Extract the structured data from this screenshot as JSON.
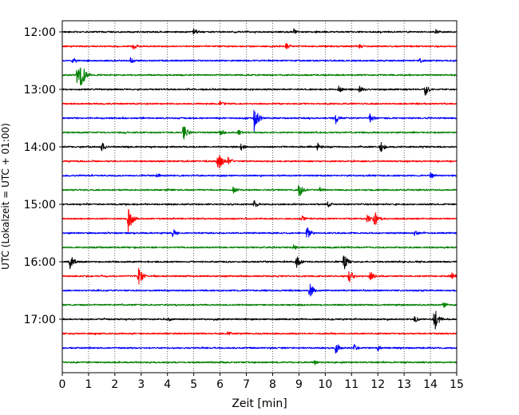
{
  "chart_data": {
    "type": "line",
    "xlabel": "Zeit  [min]",
    "ylabel": "UTC (Lokalzeit = UTC + 01:00)",
    "xlim": [
      0,
      15
    ],
    "x_ticks": [
      0,
      1,
      2,
      3,
      4,
      5,
      6,
      7,
      8,
      9,
      10,
      11,
      12,
      13,
      14,
      15
    ],
    "y_ticks": [
      {
        "label": "12:00",
        "trace": 0
      },
      {
        "label": "13:00",
        "trace": 4
      },
      {
        "label": "14:00",
        "trace": 8
      },
      {
        "label": "15:00",
        "trace": 12
      },
      {
        "label": "16:00",
        "trace": 16
      },
      {
        "label": "17:00",
        "trace": 20
      }
    ],
    "grid": "vertical-dotted",
    "trace_interval_minutes": 15,
    "color_cycle": [
      "#000000",
      "#ff0000",
      "#0000ff",
      "#008000"
    ],
    "series": [
      {
        "start": "12:00",
        "events": [
          {
            "x": 5.0,
            "amp": 1.2
          },
          {
            "x": 8.8,
            "amp": 1.1
          },
          {
            "x": 14.2,
            "amp": 1.0
          }
        ]
      },
      {
        "start": "12:15",
        "events": [
          {
            "x": 2.7,
            "amp": 1.3
          },
          {
            "x": 8.5,
            "amp": 1.2
          },
          {
            "x": 11.3,
            "amp": 0.9
          }
        ]
      },
      {
        "start": "12:30",
        "events": [
          {
            "x": 0.4,
            "amp": 1.4
          },
          {
            "x": 2.6,
            "amp": 1.2
          },
          {
            "x": 13.6,
            "amp": 1.0
          }
        ]
      },
      {
        "start": "12:45",
        "events": [
          {
            "x": 0.7,
            "amp": 5.2
          },
          {
            "x": 0.55,
            "amp": 2.6
          }
        ]
      },
      {
        "start": "13:00",
        "events": [
          {
            "x": 10.5,
            "amp": 1.4
          },
          {
            "x": 11.3,
            "amp": 1.2
          },
          {
            "x": 13.8,
            "amp": 2.2
          }
        ]
      },
      {
        "start": "13:15",
        "events": [
          {
            "x": 6.0,
            "amp": 0.9
          }
        ]
      },
      {
        "start": "13:30",
        "events": [
          {
            "x": 7.3,
            "amp": 4.6
          },
          {
            "x": 10.4,
            "amp": 1.9
          },
          {
            "x": 11.7,
            "amp": 1.5
          }
        ]
      },
      {
        "start": "13:45",
        "events": [
          {
            "x": 4.6,
            "amp": 3.0
          },
          {
            "x": 6.0,
            "amp": 1.3
          },
          {
            "x": 6.7,
            "amp": 1.0
          }
        ]
      },
      {
        "start": "14:00",
        "events": [
          {
            "x": 1.5,
            "amp": 1.6
          },
          {
            "x": 6.8,
            "amp": 1.4
          },
          {
            "x": 9.7,
            "amp": 1.5
          },
          {
            "x": 12.1,
            "amp": 2.0
          }
        ]
      },
      {
        "start": "14:15",
        "events": [
          {
            "x": 5.9,
            "amp": 4.2
          },
          {
            "x": 6.3,
            "amp": 1.6
          }
        ]
      },
      {
        "start": "14:30",
        "events": [
          {
            "x": 3.6,
            "amp": 0.9
          },
          {
            "x": 14.0,
            "amp": 1.1
          }
        ]
      },
      {
        "start": "14:45",
        "events": [
          {
            "x": 6.5,
            "amp": 1.3
          },
          {
            "x": 9.0,
            "amp": 2.6
          },
          {
            "x": 9.8,
            "amp": 1.0
          }
        ]
      },
      {
        "start": "15:00",
        "events": [
          {
            "x": 7.3,
            "amp": 1.4
          },
          {
            "x": 10.1,
            "amp": 1.1
          }
        ]
      },
      {
        "start": "15:15",
        "events": [
          {
            "x": 2.5,
            "amp": 4.4
          },
          {
            "x": 9.1,
            "amp": 1.3
          },
          {
            "x": 11.6,
            "amp": 1.6
          },
          {
            "x": 11.85,
            "amp": 3.2
          }
        ]
      },
      {
        "start": "15:30",
        "events": [
          {
            "x": 4.2,
            "amp": 1.8
          },
          {
            "x": 9.3,
            "amp": 2.3
          },
          {
            "x": 13.4,
            "amp": 1.0
          }
        ]
      },
      {
        "start": "15:45",
        "events": [
          {
            "x": 8.8,
            "amp": 1.0
          }
        ]
      },
      {
        "start": "16:00",
        "events": [
          {
            "x": 0.3,
            "amp": 2.5
          },
          {
            "x": 8.9,
            "amp": 2.2
          },
          {
            "x": 10.7,
            "amp": 2.9
          }
        ]
      },
      {
        "start": "16:15",
        "events": [
          {
            "x": 2.9,
            "amp": 3.1
          },
          {
            "x": 10.9,
            "amp": 2.4
          },
          {
            "x": 11.7,
            "amp": 1.9
          },
          {
            "x": 14.8,
            "amp": 1.4
          }
        ]
      },
      {
        "start": "16:30",
        "events": [
          {
            "x": 9.4,
            "amp": 2.6
          }
        ]
      },
      {
        "start": "16:45",
        "events": [
          {
            "x": 14.5,
            "amp": 1.0
          }
        ]
      },
      {
        "start": "17:00",
        "events": [
          {
            "x": 4.0,
            "amp": 1.0
          },
          {
            "x": 13.4,
            "amp": 1.2
          },
          {
            "x": 14.15,
            "amp": 4.0
          }
        ]
      },
      {
        "start": "17:15",
        "events": [
          {
            "x": 6.3,
            "amp": 0.8
          }
        ]
      },
      {
        "start": "17:30",
        "events": [
          {
            "x": 10.4,
            "amp": 2.0
          },
          {
            "x": 11.1,
            "amp": 1.2
          },
          {
            "x": 12.0,
            "amp": 1.0
          }
        ]
      },
      {
        "start": "17:45",
        "events": [
          {
            "x": 9.6,
            "amp": 0.9
          }
        ]
      }
    ]
  }
}
